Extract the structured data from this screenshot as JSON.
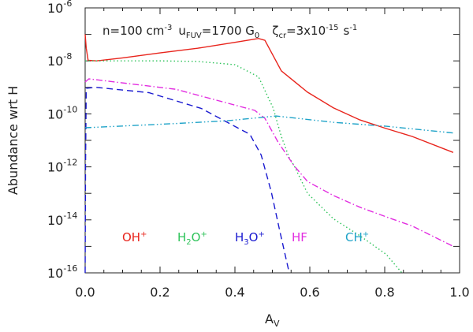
{
  "chart_data": {
    "type": "line",
    "title": "n=100 cm⁻³ u_FUV=1700 G_0 ζ_cr=3x10⁻¹⁵ s⁻¹",
    "title_parts": {
      "n": "n=100 cm",
      "n_exp": "-3",
      "u": "u",
      "u_sub": "FUV",
      "u_val": "=1700 G",
      "g_sub": "0",
      "zeta": "ζ",
      "zeta_sub": "cr",
      "zeta_val": "=3x10",
      "zeta_exp": "-15",
      "s": "s",
      "s_exp": "-1"
    },
    "xlabel": "A",
    "xlabel_sub": "V",
    "ylabel": "Abundance wrt H",
    "xlim": [
      0,
      1
    ],
    "ylim": [
      1e-16,
      1e-06
    ],
    "yscale": "log",
    "xticks": [
      "0.0",
      "0.2",
      "0.4",
      "0.6",
      "0.8",
      "1.0"
    ],
    "yticks": [
      {
        "base": "10",
        "exp": "-6"
      },
      {
        "base": "10",
        "exp": "-8"
      },
      {
        "base": "10",
        "exp": "-10"
      },
      {
        "base": "10",
        "exp": "-12"
      },
      {
        "base": "10",
        "exp": "-14"
      },
      {
        "base": "10",
        "exp": "-16"
      }
    ],
    "grid": false,
    "legend_placement": "bottom-inside",
    "series": [
      {
        "name": "OH+",
        "label": "OH",
        "sup": "+",
        "color": "#e8241c",
        "style": "solid",
        "x": [
          0,
          0.003,
          0.008,
          0.03,
          0.1,
          0.2,
          0.3,
          0.4,
          0.463,
          0.48,
          0.524,
          0.594,
          0.663,
          0.734,
          0.804,
          0.874,
          0.983
        ],
        "y": [
          1e-07,
          3e-08,
          1.05e-08,
          1e-08,
          1.3e-08,
          2e-08,
          3e-08,
          5e-08,
          7e-08,
          6e-08,
          4.2e-09,
          6.6e-10,
          1.7e-10,
          5.9e-11,
          2.8e-11,
          1.4e-11,
          3.5e-12
        ]
      },
      {
        "name": "H2O+",
        "label": "H",
        "sub": "2",
        "label2": "O",
        "sup": "+",
        "color": "#2ec35a",
        "style": "dotted",
        "x": [
          0,
          0.1,
          0.2,
          0.3,
          0.4,
          0.463,
          0.502,
          0.524,
          0.545,
          0.558,
          0.594,
          0.663,
          0.734,
          0.804,
          0.846
        ],
        "y": [
          1e-08,
          1e-08,
          1e-08,
          9.5e-09,
          7.2e-09,
          2.5e-09,
          1.7e-10,
          1.4e-11,
          2.2e-12,
          1.1e-12,
          1e-13,
          1.1e-14,
          2.5e-15,
          5e-16,
          1e-16
        ]
      },
      {
        "name": "H3O+",
        "label": "H",
        "sub": "3",
        "label2": "O",
        "sup": "+",
        "color": "#1a1ad0",
        "style": "dashed",
        "x": [
          0,
          0.001,
          0.003,
          0.03,
          0.17,
          0.31,
          0.39,
          0.44,
          0.47,
          0.497,
          0.52,
          0.545
        ],
        "y": [
          1e-16,
          1e-12,
          9.3e-10,
          1e-09,
          6.3e-10,
          1.6e-10,
          4e-11,
          1.7e-11,
          2.8e-12,
          1.15e-13,
          3.7e-15,
          1e-16
        ]
      },
      {
        "name": "HF",
        "label": "HF",
        "color": "#e22de0",
        "style": "dashdot",
        "x": [
          0,
          0.01,
          0.242,
          0.453,
          0.48,
          0.515,
          0.558,
          0.594,
          0.663,
          0.734,
          0.804,
          0.874,
          0.983
        ],
        "y": [
          1.6e-09,
          2.1e-09,
          8.5e-10,
          1.35e-10,
          6.8e-11,
          8.7e-12,
          1.1e-12,
          2.8e-13,
          8.3e-14,
          3e-14,
          1.3e-14,
          5.8e-15,
          1e-15
        ]
      },
      {
        "name": "CH+",
        "label": "CH",
        "sup": "+",
        "color": "#1fa3c8",
        "style": "dashdotdot",
        "x": [
          0,
          0.24,
          0.38,
          0.51,
          0.663,
          0.804,
          0.983
        ],
        "y": [
          3e-11,
          4.3e-11,
          5.5e-11,
          8.3e-11,
          4.8e-11,
          3.4e-11,
          1.9e-11
        ]
      }
    ]
  }
}
